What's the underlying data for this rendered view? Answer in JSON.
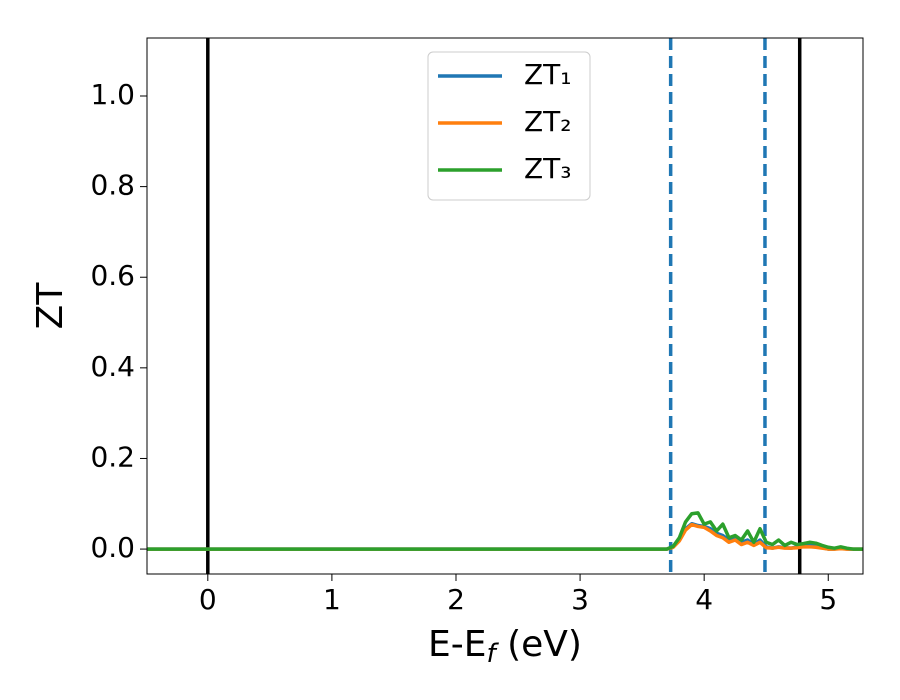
{
  "chart_data": {
    "type": "line",
    "x_label": {
      "main": "E-E",
      "sub": "f",
      "tail": " (eV)"
    },
    "y_label": "ZT",
    "x": [
      -0.49,
      3.7,
      3.75,
      3.8,
      3.85,
      3.9,
      3.95,
      4.0,
      4.05,
      4.1,
      4.15,
      4.2,
      4.25,
      4.3,
      4.35,
      4.4,
      4.45,
      4.5,
      4.55,
      4.6,
      4.65,
      4.7,
      4.75,
      4.8,
      4.85,
      4.9,
      4.95,
      5.0,
      5.05,
      5.1,
      5.15,
      5.2,
      5.28
    ],
    "series": [
      {
        "name": "ZT₁",
        "color": "#1f77b4",
        "values": [
          0,
          0,
          0.005,
          0.02,
          0.045,
          0.056,
          0.052,
          0.05,
          0.045,
          0.035,
          0.03,
          0.02,
          0.025,
          0.015,
          0.02,
          0.01,
          0.02,
          0.005,
          0.002,
          0.005,
          0.003,
          0.002,
          0.005,
          0.01,
          0.012,
          0.008,
          0.003,
          0,
          0,
          0.002,
          0,
          0,
          0
        ]
      },
      {
        "name": "ZT₂",
        "color": "#ff7f0e",
        "values": [
          0,
          0,
          0.004,
          0.018,
          0.042,
          0.054,
          0.05,
          0.048,
          0.04,
          0.03,
          0.025,
          0.015,
          0.02,
          0.01,
          0.015,
          0.008,
          0.015,
          0.003,
          0.002,
          0.004,
          0.002,
          0.002,
          0.003,
          0.005,
          0.005,
          0.004,
          0.002,
          0,
          0,
          0.001,
          0,
          0,
          0
        ]
      },
      {
        "name": "ZT₃",
        "color": "#2ca02c",
        "values": [
          0,
          0,
          0.006,
          0.025,
          0.06,
          0.078,
          0.08,
          0.055,
          0.06,
          0.04,
          0.055,
          0.025,
          0.03,
          0.02,
          0.04,
          0.015,
          0.045,
          0.015,
          0.01,
          0.02,
          0.008,
          0.015,
          0.01,
          0.012,
          0.015,
          0.013,
          0.008,
          0.004,
          0.002,
          0.005,
          0.002,
          0,
          0
        ]
      }
    ],
    "vlines": [
      {
        "x": 0,
        "color": "#000000",
        "style": "solid"
      },
      {
        "x": 4.77,
        "color": "#000000",
        "style": "solid"
      },
      {
        "x": 3.73,
        "color": "#1f77b4",
        "style": "dashed"
      },
      {
        "x": 4.49,
        "color": "#1f77b4",
        "style": "dashed"
      }
    ],
    "xlim": [
      -0.49,
      5.28
    ],
    "ylim": [
      -0.055,
      1.128
    ],
    "xticks": [
      0,
      1,
      2,
      3,
      4,
      5
    ],
    "yticks": [
      {
        "value": 0,
        "label": "0.0"
      },
      {
        "value": 0.2,
        "label": "0.2"
      },
      {
        "value": 0.4,
        "label": "0.4"
      },
      {
        "value": 0.6,
        "label": "0.6"
      },
      {
        "value": 0.8,
        "label": "0.8"
      },
      {
        "value": 1,
        "label": "1.0"
      }
    ],
    "legend": "upper center",
    "grid": false
  }
}
